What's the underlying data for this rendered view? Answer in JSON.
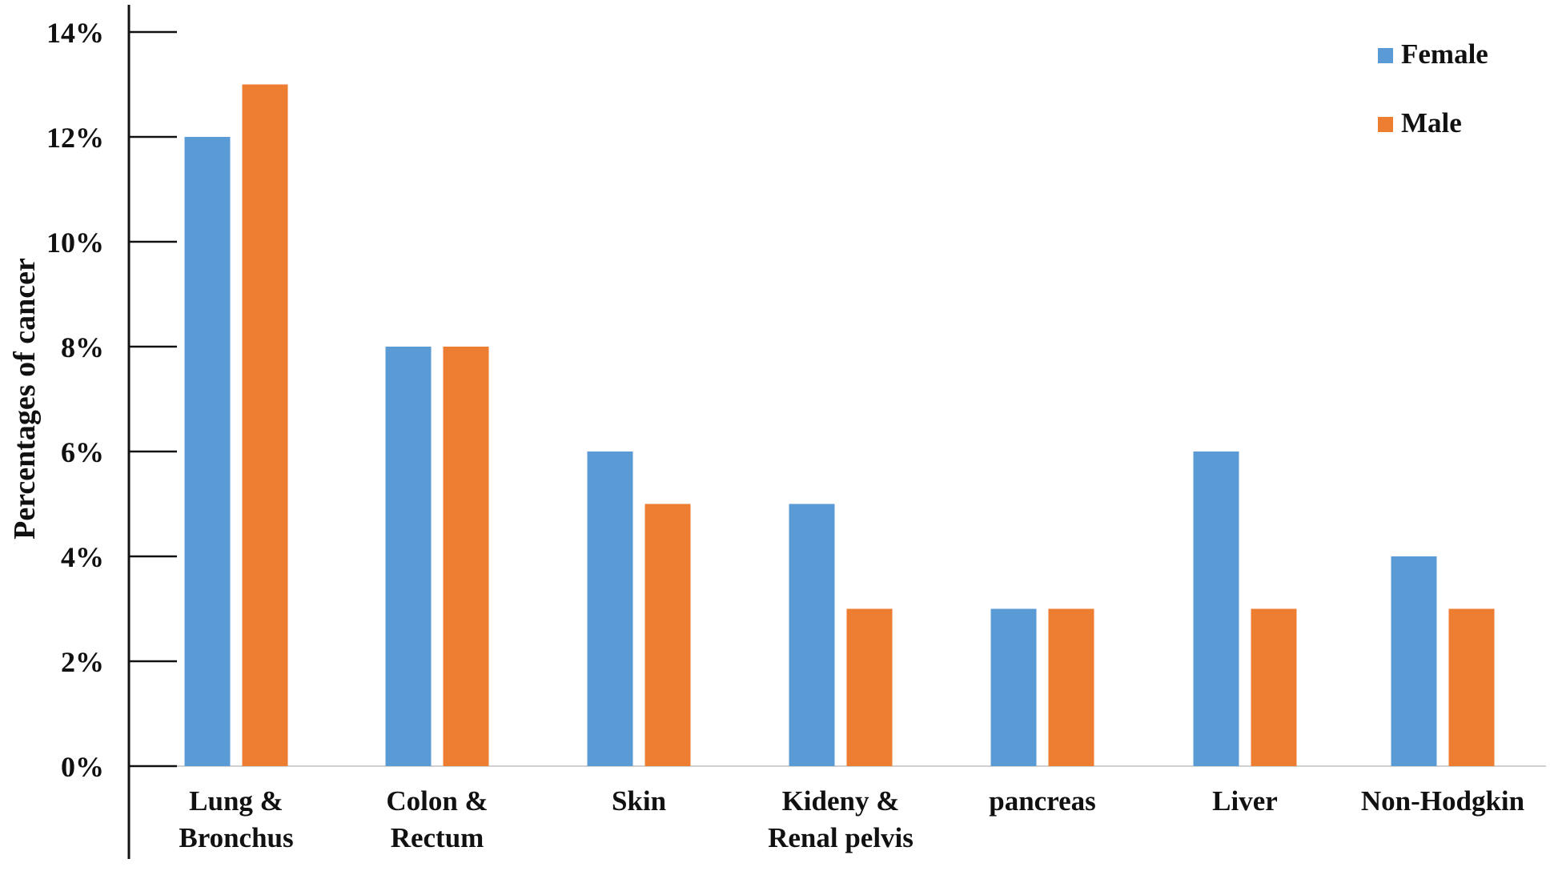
{
  "chart_data": {
    "type": "bar",
    "title": "",
    "xlabel": "",
    "ylabel": "Percentages of cancer",
    "ylim": [
      0,
      14
    ],
    "yticks": [
      "0%",
      "2%",
      "4%",
      "6%",
      "8%",
      "10%",
      "12%",
      "14%"
    ],
    "grid": false,
    "legend_position": "top-right",
    "categories": [
      [
        "Lung &",
        "Bronchus"
      ],
      [
        "Colon &",
        "Rectum"
      ],
      [
        "Skin"
      ],
      [
        "Kideny &",
        "Renal pelvis"
      ],
      [
        "pancreas"
      ],
      [
        "Liver"
      ],
      [
        "Non-Hodgkin"
      ]
    ],
    "series": [
      {
        "name": "Female",
        "color": "#5b9bd5",
        "values": [
          12,
          8,
          6,
          5,
          3,
          6,
          4
        ]
      },
      {
        "name": "Male",
        "color": "#ed7d31",
        "values": [
          13,
          8,
          5,
          3,
          3,
          3,
          3
        ]
      }
    ]
  }
}
